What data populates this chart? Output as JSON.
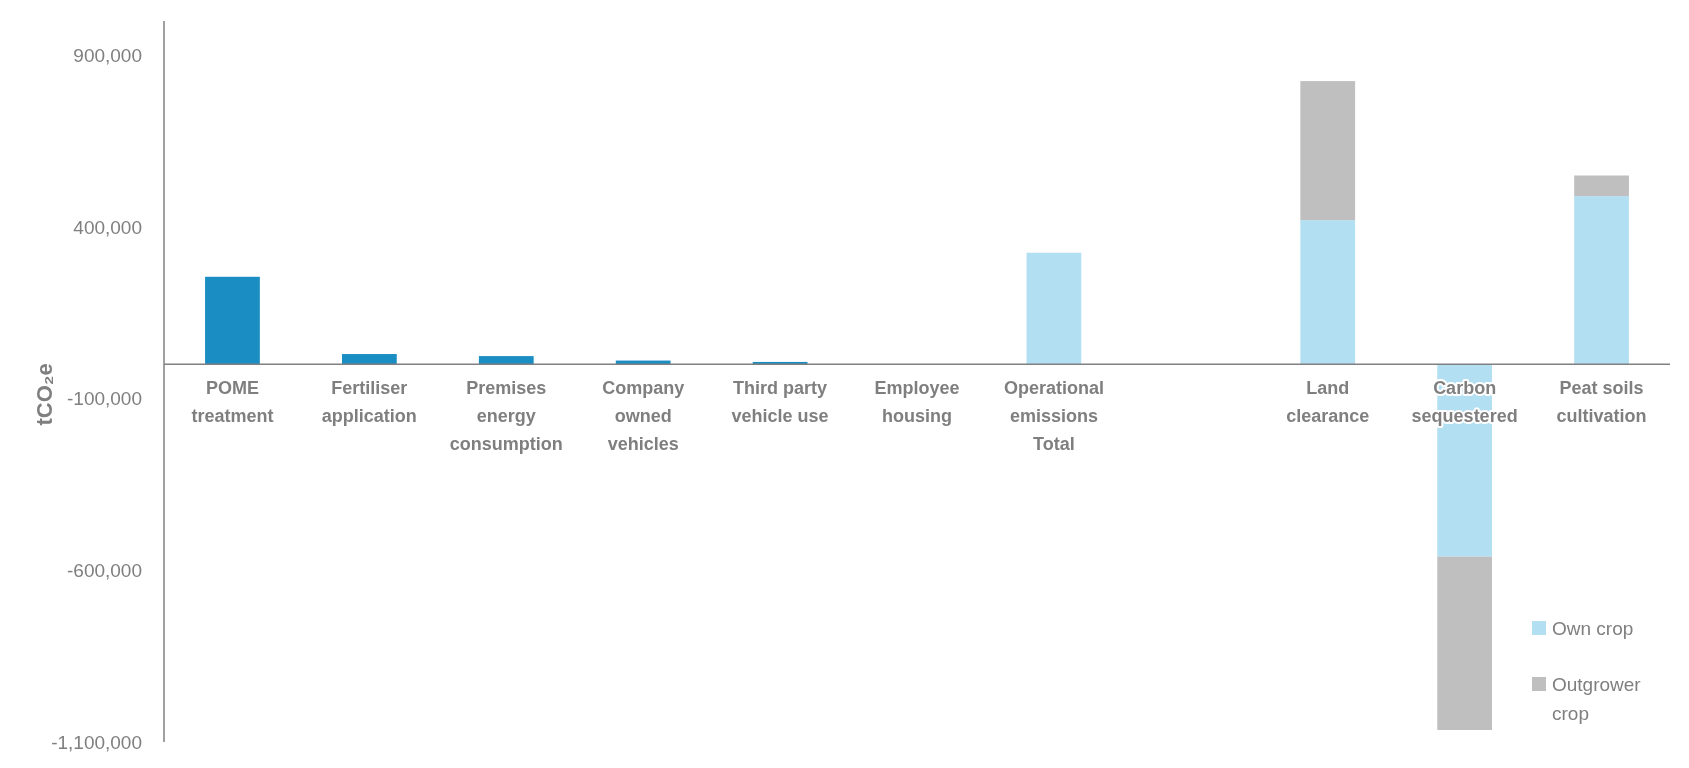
{
  "chart_data": {
    "type": "bar",
    "stacked": true,
    "ylabel": "tCO₂e",
    "categories": [
      "POME treatment",
      "Fertiliser application",
      "Premises energy consumption",
      "Company owned vehicles",
      "Third party vehicle use",
      "Employee housing",
      "Operational emissions Total",
      null,
      "Land clearance",
      "Carbon sequestered",
      "Peat soils cultivation"
    ],
    "series": [
      {
        "color": "#1a8dc2",
        "values": [
          255000,
          30000,
          24000,
          11000,
          7000,
          0,
          null,
          null,
          null,
          null,
          null
        ]
      },
      {
        "name": "Own crop",
        "color": "#b3dff3",
        "values": [
          null,
          null,
          null,
          null,
          null,
          null,
          325000,
          null,
          420000,
          -560000,
          490000
        ]
      },
      {
        "name": "Outgrower crop",
        "color": "#bfbfbf",
        "values": [
          null,
          null,
          null,
          null,
          null,
          null,
          null,
          null,
          405000,
          -505000,
          60000
        ]
      }
    ],
    "ylim": [
      -1100000,
      1000000
    ],
    "yticks": [
      {
        "value": 900000,
        "label": "900,000"
      },
      {
        "value": 400000,
        "label": "400,000"
      },
      {
        "value": -100000,
        "label": "-100,000"
      },
      {
        "value": -600000,
        "label": "-600,000"
      },
      {
        "value": -1100000,
        "label": "-1,100,000"
      }
    ],
    "grid": false,
    "legend": "bottom right"
  }
}
